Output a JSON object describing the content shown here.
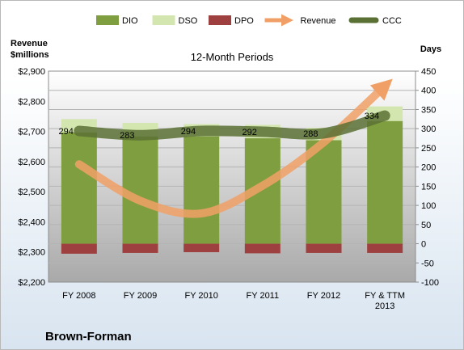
{
  "chart_data": {
    "type": "bar",
    "title": "12-Month Periods",
    "company": "Brown-Forman",
    "left_axis_label_line1": "Revenue",
    "left_axis_label_line2": "$millions",
    "right_axis_label": "Days",
    "categories": [
      [
        "FY 2008"
      ],
      [
        "FY 2009"
      ],
      [
        "FY 2010"
      ],
      [
        "FY 2011"
      ],
      [
        "FY 2012"
      ],
      [
        "FY & TTM",
        "2013"
      ]
    ],
    "days_axis": {
      "min": -100,
      "max": 450,
      "ticks": [
        -100,
        -50,
        0,
        50,
        100,
        150,
        200,
        250,
        300,
        350,
        400,
        450
      ]
    },
    "revenue_axis": {
      "min": 2200,
      "max": 2900,
      "ticks": [
        "$2,200",
        "$2,300",
        "$2,400",
        "$2,500",
        "$2,600",
        "$2,700",
        "$2,800",
        "$2,900"
      ]
    },
    "legend": [
      {
        "name": "DIO",
        "kind": "box",
        "color": "#7f9e3f"
      },
      {
        "name": "DSO",
        "kind": "box",
        "color": "#d4e6b0"
      },
      {
        "name": "DPO",
        "kind": "box",
        "color": "#9e4040"
      },
      {
        "name": "Revenue",
        "kind": "arrow",
        "color": "#f0a066"
      },
      {
        "name": "CCC",
        "kind": "line",
        "color": "#5a7034"
      }
    ],
    "series": [
      {
        "name": "DIO",
        "values": [
          290,
          280,
          280,
          275,
          270,
          320
        ]
      },
      {
        "name": "DSO",
        "values": [
          35,
          35,
          32,
          35,
          32,
          38
        ]
      },
      {
        "name": "DPO",
        "values": [
          -26,
          -24,
          -22,
          -25,
          -24,
          -24
        ]
      },
      {
        "name": "Revenue",
        "values": [
          2591,
          2470,
          2428,
          2520,
          2664,
          2851
        ]
      },
      {
        "name": "CCC",
        "values": [
          294,
          283,
          294,
          292,
          288,
          334
        ],
        "labels": [
          "294",
          "283",
          "294",
          "292",
          "288",
          "334"
        ]
      }
    ],
    "grid": true
  }
}
